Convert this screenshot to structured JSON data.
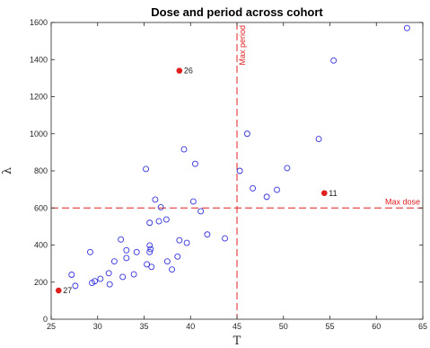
{
  "chart_data": {
    "type": "scatter",
    "title": "Dose and period across cohort",
    "xlabel": "T",
    "ylabel": "λ",
    "xlim": [
      25,
      65
    ],
    "ylim": [
      0,
      1600
    ],
    "xticks": [
      25,
      30,
      35,
      40,
      45,
      50,
      55,
      60,
      65
    ],
    "yticks": [
      0,
      200,
      400,
      600,
      800,
      1000,
      1200,
      1400,
      1600
    ],
    "grid": false,
    "marker_color": "#3333dd",
    "highlight_color": "#e02020",
    "points": [
      {
        "x": 27.2,
        "y": 240
      },
      {
        "x": 27.6,
        "y": 180
      },
      {
        "x": 29.2,
        "y": 362
      },
      {
        "x": 29.4,
        "y": 196
      },
      {
        "x": 29.7,
        "y": 205
      },
      {
        "x": 30.3,
        "y": 218
      },
      {
        "x": 31.2,
        "y": 248
      },
      {
        "x": 31.3,
        "y": 188
      },
      {
        "x": 31.8,
        "y": 312
      },
      {
        "x": 32.5,
        "y": 430
      },
      {
        "x": 32.7,
        "y": 228
      },
      {
        "x": 33.1,
        "y": 372
      },
      {
        "x": 33.1,
        "y": 330
      },
      {
        "x": 33.9,
        "y": 242
      },
      {
        "x": 34.2,
        "y": 362
      },
      {
        "x": 35.2,
        "y": 810
      },
      {
        "x": 35.3,
        "y": 296
      },
      {
        "x": 35.6,
        "y": 398
      },
      {
        "x": 35.6,
        "y": 520
      },
      {
        "x": 35.6,
        "y": 362
      },
      {
        "x": 35.7,
        "y": 378
      },
      {
        "x": 35.8,
        "y": 282
      },
      {
        "x": 36.2,
        "y": 645
      },
      {
        "x": 36.6,
        "y": 528
      },
      {
        "x": 36.8,
        "y": 604
      },
      {
        "x": 37.4,
        "y": 538
      },
      {
        "x": 37.5,
        "y": 312
      },
      {
        "x": 38.0,
        "y": 268
      },
      {
        "x": 38.6,
        "y": 338
      },
      {
        "x": 38.8,
        "y": 426
      },
      {
        "x": 39.3,
        "y": 916
      },
      {
        "x": 39.6,
        "y": 412
      },
      {
        "x": 40.3,
        "y": 635
      },
      {
        "x": 40.5,
        "y": 838
      },
      {
        "x": 41.1,
        "y": 582
      },
      {
        "x": 41.8,
        "y": 457
      },
      {
        "x": 43.7,
        "y": 436
      },
      {
        "x": 45.3,
        "y": 800
      },
      {
        "x": 46.1,
        "y": 1000
      },
      {
        "x": 46.7,
        "y": 706
      },
      {
        "x": 48.2,
        "y": 660
      },
      {
        "x": 49.3,
        "y": 698
      },
      {
        "x": 50.4,
        "y": 815
      },
      {
        "x": 53.8,
        "y": 972
      },
      {
        "x": 55.4,
        "y": 1395
      },
      {
        "x": 63.3,
        "y": 1570
      }
    ],
    "highlighted": [
      {
        "x": 38.8,
        "y": 1340,
        "label": "26"
      },
      {
        "x": 54.4,
        "y": 680,
        "label": "11"
      },
      {
        "x": 25.8,
        "y": 155,
        "label": "27"
      }
    ],
    "reference_lines": [
      {
        "orientation": "vertical",
        "value": 45,
        "label": "Max period"
      },
      {
        "orientation": "horizontal",
        "value": 600,
        "label": "Max dose"
      }
    ]
  }
}
